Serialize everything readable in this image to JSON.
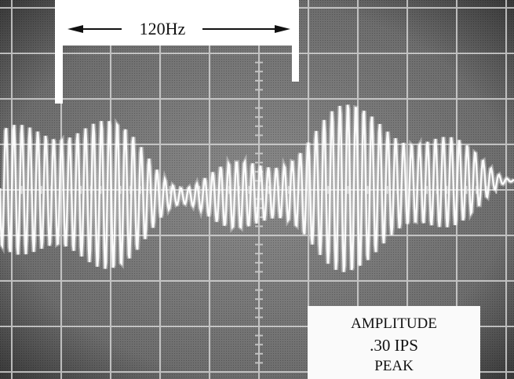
{
  "span_label": "120Hz",
  "amplitude_box": {
    "lines": [
      "AMPLITUDE",
      ".30 IPS",
      "PEAK"
    ]
  }
}
